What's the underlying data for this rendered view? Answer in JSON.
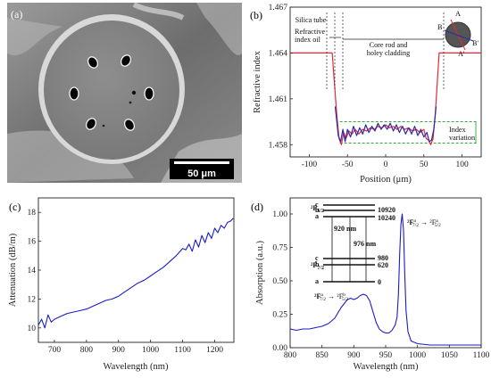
{
  "panels": {
    "a": {
      "label": "(a)",
      "scale_bar": "50 μm"
    }
  },
  "chart_data": [
    {
      "id": "b",
      "panel_label": "(b)",
      "type": "line",
      "xlabel": "Position (μm)",
      "ylabel": "Refractive index",
      "xlim": [
        -125,
        125
      ],
      "ylim": [
        1.4572,
        1.467
      ],
      "x_ticks": [
        -100,
        -50,
        0,
        50,
        100
      ],
      "y_ticks": [
        1.458,
        1.461,
        1.464,
        1.467
      ],
      "grid": false,
      "annotations": [
        "Silica tube",
        "Refractive index oil",
        "Core rod and holey cladding",
        "Index variation"
      ],
      "inset_labels": [
        "A",
        "B",
        "B'",
        "A'"
      ],
      "series": [
        {
          "color": "#e8273a",
          "x": [
            -125,
            -70,
            -64,
            -61,
            -58,
            -55,
            -52,
            -48,
            -44,
            -40,
            -35,
            -30,
            -25,
            -20,
            -15,
            -10,
            -5,
            0,
            5,
            10,
            15,
            20,
            25,
            30,
            35,
            40,
            45,
            50,
            53,
            56,
            59,
            62,
            65,
            70,
            125
          ],
          "values": [
            1.464,
            1.464,
            1.46,
            1.4584,
            1.458,
            1.4588,
            1.4584,
            1.4589,
            1.4587,
            1.459,
            1.4587,
            1.459,
            1.4589,
            1.4591,
            1.459,
            1.4592,
            1.4591,
            1.4593,
            1.4591,
            1.4592,
            1.459,
            1.4592,
            1.459,
            1.4591,
            1.4589,
            1.459,
            1.4588,
            1.459,
            1.4584,
            1.4583,
            1.458,
            1.4584,
            1.46,
            1.464,
            1.464
          ]
        },
        {
          "color": "#2a2aa8",
          "x": [
            -66,
            -62,
            -59,
            -56,
            -53,
            -50,
            -46,
            -42,
            -38,
            -34,
            -30,
            -26,
            -22,
            -18,
            -14,
            -10,
            -6,
            -2,
            2,
            6,
            10,
            14,
            18,
            22,
            26,
            30,
            34,
            38,
            42,
            46,
            50,
            54,
            57,
            60,
            63,
            66
          ],
          "values": [
            1.4605,
            1.4586,
            1.4582,
            1.459,
            1.4582,
            1.459,
            1.4585,
            1.4592,
            1.4586,
            1.4591,
            1.4587,
            1.4593,
            1.4588,
            1.4592,
            1.4589,
            1.4594,
            1.459,
            1.4593,
            1.459,
            1.4594,
            1.4589,
            1.4593,
            1.4588,
            1.4592,
            1.4587,
            1.4591,
            1.4587,
            1.4592,
            1.4586,
            1.459,
            1.4585,
            1.4588,
            1.4582,
            1.4583,
            1.459,
            1.4605
          ]
        }
      ],
      "variation_band": [
        1.4581,
        1.4595
      ]
    },
    {
      "id": "c",
      "panel_label": "(c)",
      "type": "line",
      "xlabel": "Wavelength (nm)",
      "ylabel": "Attenuation (dB/m)",
      "xlim": [
        650,
        1260
      ],
      "ylim": [
        9,
        19
      ],
      "x_ticks": [
        700,
        800,
        900,
        1000,
        1100,
        1200
      ],
      "y_ticks": [
        10,
        12,
        14,
        16,
        18
      ],
      "grid": false,
      "series": [
        {
          "color": "#1b1bc9",
          "x": [
            650,
            660,
            670,
            680,
            690,
            700,
            720,
            740,
            760,
            780,
            800,
            820,
            840,
            860,
            880,
            900,
            920,
            940,
            960,
            980,
            1000,
            1020,
            1040,
            1060,
            1080,
            1100,
            1110,
            1120,
            1130,
            1140,
            1150,
            1160,
            1170,
            1180,
            1190,
            1200,
            1210,
            1220,
            1230,
            1240,
            1250,
            1258
          ],
          "values": [
            10.2,
            10.6,
            10.0,
            10.9,
            10.4,
            10.6,
            10.8,
            11.0,
            11.1,
            11.2,
            11.3,
            11.5,
            11.7,
            11.9,
            12.0,
            12.2,
            12.5,
            12.8,
            13.1,
            13.3,
            13.6,
            13.9,
            14.2,
            14.6,
            15.0,
            15.5,
            15.4,
            15.8,
            15.3,
            16.1,
            15.6,
            16.4,
            15.9,
            16.6,
            16.2,
            16.9,
            16.6,
            17.1,
            16.9,
            17.3,
            17.4,
            17.6
          ]
        }
      ]
    },
    {
      "id": "d",
      "panel_label": "(d)",
      "type": "line",
      "xlabel": "Wavelength (nm)",
      "ylabel": "Absorption (a.u.)",
      "xlim": [
        800,
        1100
      ],
      "ylim": [
        0,
        1.12
      ],
      "x_ticks": [
        800,
        850,
        900,
        950,
        1000,
        1050,
        1100
      ],
      "y_ticks": [
        0.0,
        0.25,
        0.5,
        0.75,
        1.0
      ],
      "y_tick_labels": [
        "0.00",
        "0.25",
        "0.50",
        "0.75",
        "1.00"
      ],
      "grid": false,
      "series": [
        {
          "color": "#1b1bc9",
          "x": [
            800,
            810,
            820,
            830,
            840,
            850,
            860,
            870,
            875,
            880,
            885,
            890,
            895,
            900,
            905,
            910,
            915,
            920,
            925,
            930,
            935,
            940,
            945,
            950,
            955,
            960,
            965,
            968,
            970,
            972,
            974,
            976,
            978,
            980,
            982,
            985,
            990,
            1000,
            1020,
            1050,
            1080,
            1100
          ],
          "values": [
            0.14,
            0.13,
            0.14,
            0.14,
            0.15,
            0.16,
            0.18,
            0.22,
            0.26,
            0.3,
            0.33,
            0.36,
            0.37,
            0.36,
            0.37,
            0.39,
            0.4,
            0.39,
            0.35,
            0.27,
            0.19,
            0.14,
            0.12,
            0.11,
            0.11,
            0.13,
            0.17,
            0.23,
            0.4,
            0.7,
            0.92,
            1.0,
            0.88,
            0.55,
            0.28,
            0.12,
            0.05,
            0.03,
            0.02,
            0.02,
            0.02,
            0.02
          ]
        }
      ],
      "energy_levels": {
        "upper_term": "²F5/2",
        "lower_term": "²F7/2",
        "upper": [
          {
            "name": "c",
            "value": "10920"
          },
          {
            "name": "b",
            "value": ""
          },
          {
            "name": "a",
            "value": "10240"
          }
        ],
        "lower": [
          {
            "name": "c",
            "value": "980"
          },
          {
            "name": "b",
            "value": "620"
          },
          {
            "name": "a",
            "value": "0"
          }
        ],
        "transitions": [
          "920 nm",
          "976 nm"
        ]
      },
      "annotations": [
        "²F^a_{7/2} → ²F^a_{5/2}",
        "²F^a_{7/2} → ²F^b_{5/2}"
      ]
    }
  ]
}
